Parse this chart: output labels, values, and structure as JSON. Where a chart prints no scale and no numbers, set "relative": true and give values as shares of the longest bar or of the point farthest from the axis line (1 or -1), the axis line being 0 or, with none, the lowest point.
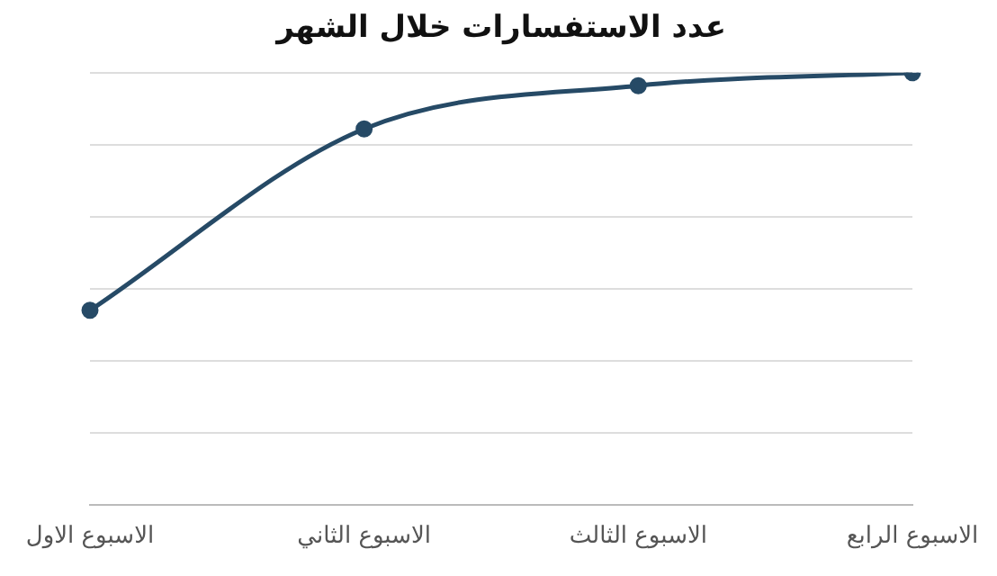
{
  "chart_data": {
    "type": "line",
    "title": "عدد الاستفسارات خلال الشهر",
    "relative": true,
    "categories": [
      "الاسبوع الاول",
      "الاسبوع الثاني",
      "الاسبوع الثالث",
      "الاسبوع الرابع"
    ],
    "series": [
      {
        "color": "#264a66",
        "values": [
          0.45,
          0.87,
          0.97,
          1
        ]
      }
    ],
    "grid": "y",
    "legend": false,
    "marker": "circle",
    "line_style": "solid"
  }
}
